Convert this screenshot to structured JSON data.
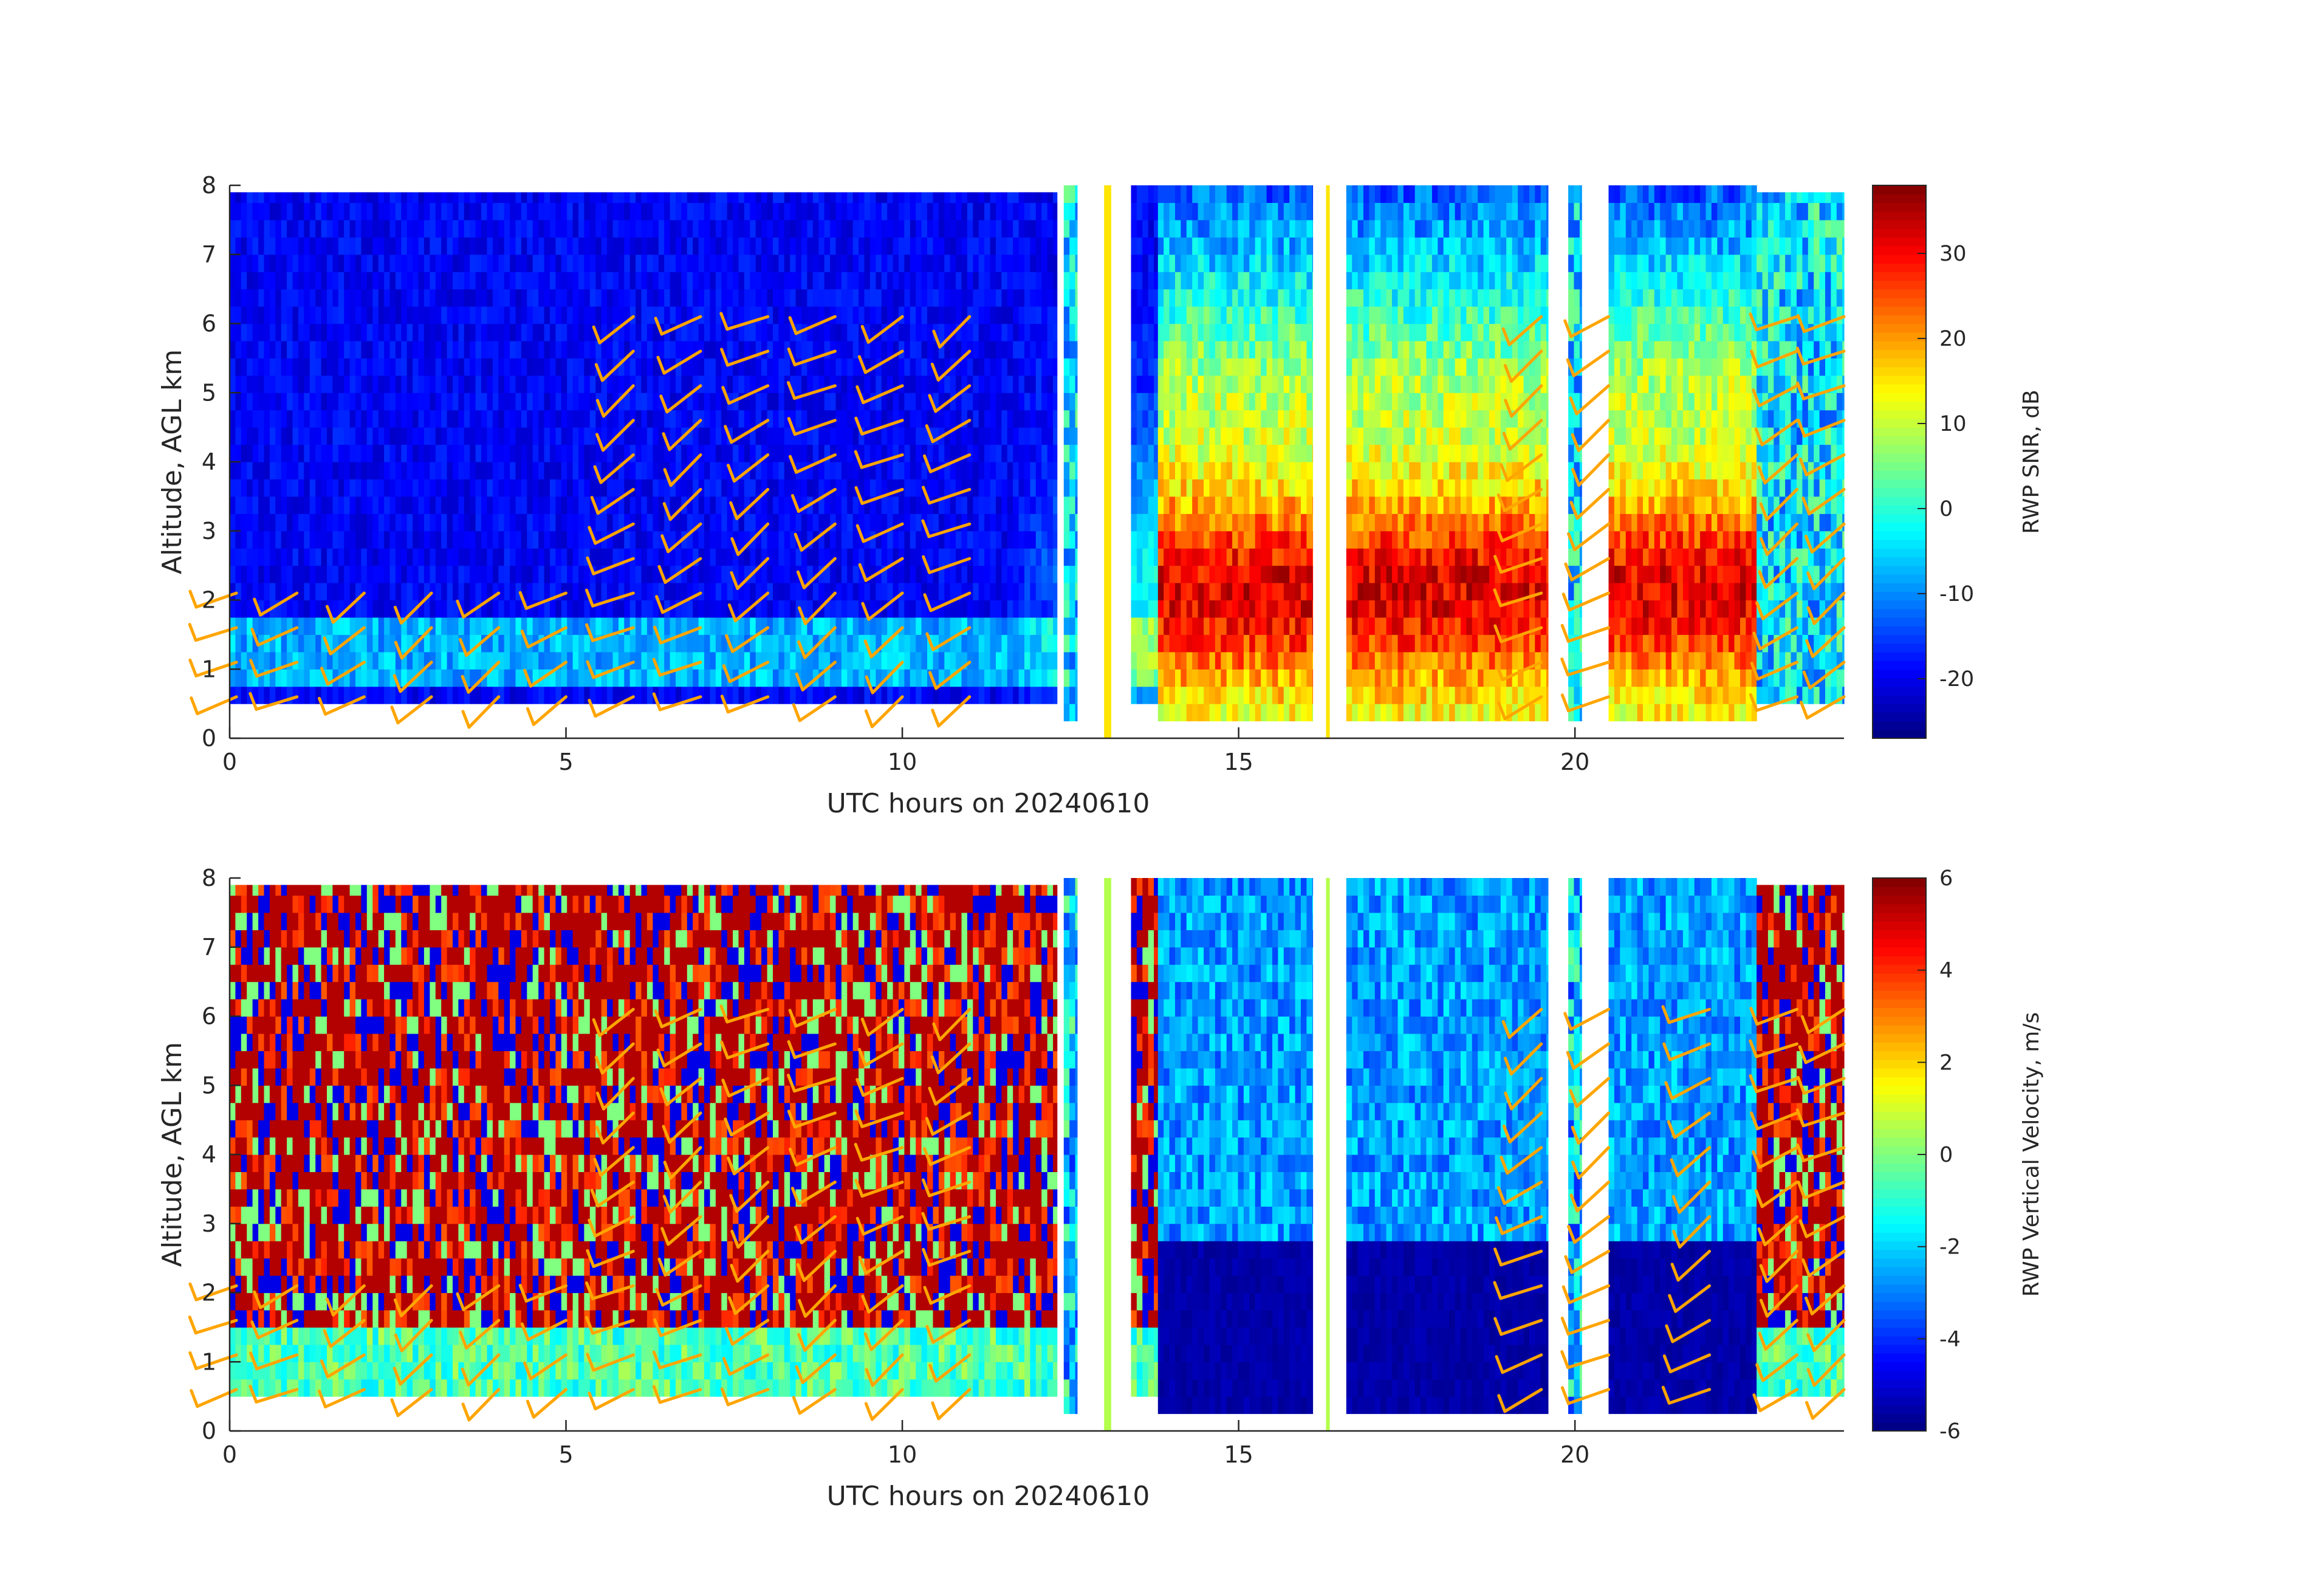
{
  "chart_data": [
    {
      "type": "heatmap",
      "subtype": "radar wind profiler time-height with wind barbs",
      "xlabel": "UTC hours on 20240610",
      "ylabel": "Altitude, AGL km",
      "xlim": [
        0,
        24
      ],
      "ylim": [
        0,
        8
      ],
      "xticks": [
        0,
        5,
        10,
        15,
        20
      ],
      "yticks": [
        0,
        1,
        2,
        3,
        4,
        5,
        6,
        7,
        8
      ],
      "colormap": "jet",
      "colorbar": {
        "label": "RWP SNR, dB",
        "range": [
          -27,
          38
        ],
        "ticks": [
          -20,
          -10,
          0,
          10,
          20,
          30
        ]
      },
      "barb_color": "#ffa500",
      "barb_times": [
        0.1,
        1.0,
        2.0,
        3.0,
        4.0,
        5.0,
        6.0,
        7.0,
        8.0,
        9.0,
        10.0,
        11.0,
        19.5,
        20.5,
        23.3,
        24.0
      ],
      "field_segments": [
        {
          "t0": 0.0,
          "t1": 12.3,
          "zmin": 0.5,
          "zmax": 7.9,
          "regime": "clear air"
        },
        {
          "t0": 12.4,
          "t1": 12.6,
          "zmin": 0.25,
          "zmax": 8.0,
          "regime": "transition"
        },
        {
          "t0": 13.0,
          "t1": 13.1,
          "zmin": 0.0,
          "zmax": 8.0,
          "regime": "missing line"
        },
        {
          "t0": 13.4,
          "t1": 13.8,
          "zmin": 0.5,
          "zmax": 8.0,
          "regime": "clear air"
        },
        {
          "t0": 13.8,
          "t1": 16.1,
          "zmin": 0.25,
          "zmax": 8.0,
          "regime": "precipitation"
        },
        {
          "t0": 16.3,
          "t1": 16.35,
          "zmin": 0.0,
          "zmax": 8.0,
          "regime": "missing line"
        },
        {
          "t0": 16.6,
          "t1": 19.6,
          "zmin": 0.25,
          "zmax": 8.0,
          "regime": "precipitation"
        },
        {
          "t0": 19.9,
          "t1": 20.1,
          "zmin": 0.25,
          "zmax": 8.0,
          "regime": "transition"
        },
        {
          "t0": 20.5,
          "t1": 22.7,
          "zmin": 0.25,
          "zmax": 8.0,
          "regime": "precipitation"
        },
        {
          "t0": 22.7,
          "t1": 24.0,
          "zmin": 0.5,
          "zmax": 7.9,
          "regime": "transition"
        }
      ]
    },
    {
      "type": "heatmap",
      "subtype": "radar wind profiler time-height with wind barbs",
      "xlabel": "UTC hours on 20240610",
      "ylabel": "Altitude, AGL km",
      "xlim": [
        0,
        24
      ],
      "ylim": [
        0,
        8
      ],
      "xticks": [
        0,
        5,
        10,
        15,
        20
      ],
      "yticks": [
        0,
        1,
        2,
        3,
        4,
        5,
        6,
        7,
        8
      ],
      "colormap": "jet",
      "colorbar": {
        "label": "RWP Vertical Velocity, m/s",
        "range": [
          -6,
          6
        ],
        "ticks": [
          -6,
          -4,
          -2,
          0,
          2,
          4,
          6
        ]
      },
      "barb_color": "#ffa500",
      "barb_times": [
        0.1,
        1.0,
        2.0,
        3.0,
        4.0,
        5.0,
        6.0,
        7.0,
        8.0,
        9.0,
        10.0,
        11.0,
        19.5,
        20.5,
        22.0,
        23.3,
        24.0
      ],
      "field_segments": [
        {
          "t0": 0.0,
          "t1": 12.3,
          "zmin": 0.5,
          "zmax": 7.9,
          "regime": "noise"
        },
        {
          "t0": 12.4,
          "t1": 12.6,
          "zmin": 0.25,
          "zmax": 8.0,
          "regime": "transition"
        },
        {
          "t0": 13.0,
          "t1": 13.1,
          "zmin": 0.0,
          "zmax": 8.0,
          "regime": "missing line"
        },
        {
          "t0": 13.4,
          "t1": 13.8,
          "zmin": 0.5,
          "zmax": 8.0,
          "regime": "noise"
        },
        {
          "t0": 13.8,
          "t1": 16.1,
          "zmin": 0.25,
          "zmax": 8.0,
          "regime": "precipitation fall"
        },
        {
          "t0": 16.3,
          "t1": 16.35,
          "zmin": 0.0,
          "zmax": 8.0,
          "regime": "missing line"
        },
        {
          "t0": 16.6,
          "t1": 19.6,
          "zmin": 0.25,
          "zmax": 8.0,
          "regime": "precipitation fall"
        },
        {
          "t0": 19.9,
          "t1": 20.1,
          "zmin": 0.25,
          "zmax": 8.0,
          "regime": "transition"
        },
        {
          "t0": 20.5,
          "t1": 22.7,
          "zmin": 0.25,
          "zmax": 8.0,
          "regime": "precipitation fall"
        },
        {
          "t0": 22.7,
          "t1": 24.0,
          "zmin": 0.5,
          "zmax": 7.9,
          "regime": "noise"
        }
      ]
    }
  ]
}
